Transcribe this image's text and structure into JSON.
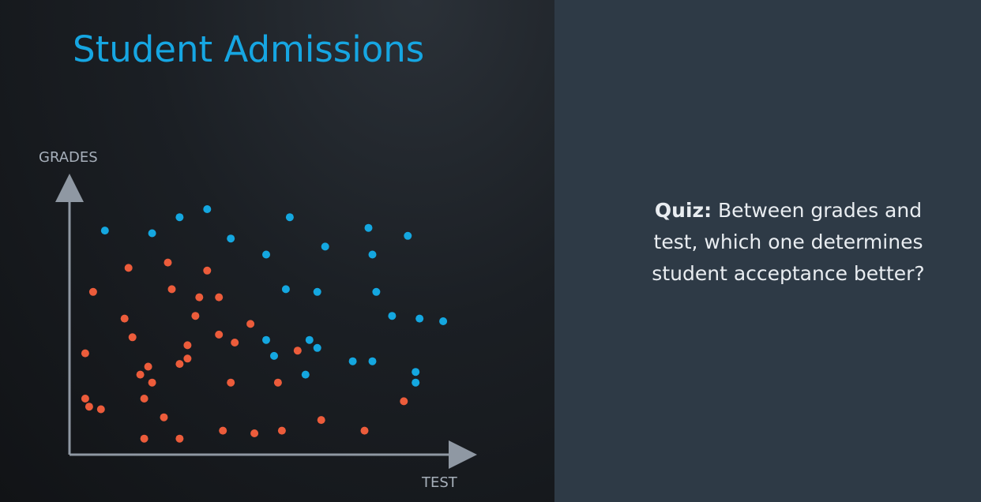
{
  "slide": {
    "title": "Student Admissions",
    "quiz_label": "Quiz:",
    "quiz_text": "Between grades and test, which one determines student acceptance better?"
  },
  "colors": {
    "accepted": "#14a7e0",
    "rejected": "#ec5c3b",
    "axis": "#8f98a3",
    "title": "#16a6e2"
  },
  "chart_data": {
    "type": "scatter",
    "title": "",
    "xlabel": "TEST",
    "ylabel": "GRADES",
    "xlim": [
      0,
      100
    ],
    "ylim": [
      0,
      100
    ],
    "grid": false,
    "series": [
      {
        "color": "#14a7e0",
        "points": [
          [
            9,
            84
          ],
          [
            21,
            83
          ],
          [
            28,
            89
          ],
          [
            35,
            92
          ],
          [
            41,
            81
          ],
          [
            56,
            89
          ],
          [
            50,
            75
          ],
          [
            65,
            78
          ],
          [
            76,
            85
          ],
          [
            77,
            75
          ],
          [
            86,
            82
          ],
          [
            55,
            62
          ],
          [
            63,
            61
          ],
          [
            78,
            61
          ],
          [
            82,
            52
          ],
          [
            89,
            51
          ],
          [
            95,
            50
          ],
          [
            50,
            43
          ],
          [
            52,
            37
          ],
          [
            61,
            43
          ],
          [
            63,
            40
          ],
          [
            72,
            35
          ],
          [
            77,
            35
          ],
          [
            60,
            30
          ],
          [
            88,
            31
          ],
          [
            88,
            27
          ]
        ]
      },
      {
        "color": "#ec5c3b",
        "points": [
          [
            15,
            70
          ],
          [
            25,
            72
          ],
          [
            35,
            69
          ],
          [
            6,
            61
          ],
          [
            26,
            62
          ],
          [
            33,
            59
          ],
          [
            38,
            59
          ],
          [
            46,
            49
          ],
          [
            14,
            51
          ],
          [
            32,
            52
          ],
          [
            42,
            42
          ],
          [
            30,
            41
          ],
          [
            18,
            30
          ],
          [
            16,
            44
          ],
          [
            38,
            45
          ],
          [
            19,
            21
          ],
          [
            28,
            34
          ],
          [
            41,
            27
          ],
          [
            53,
            27
          ],
          [
            58,
            39
          ],
          [
            21,
            27
          ],
          [
            30,
            36
          ],
          [
            24,
            14
          ],
          [
            5,
            18
          ],
          [
            8,
            17
          ],
          [
            19,
            6
          ],
          [
            28,
            6
          ],
          [
            39,
            9
          ],
          [
            47,
            8
          ],
          [
            54,
            9
          ],
          [
            64,
            13
          ],
          [
            75,
            9
          ],
          [
            85,
            20
          ],
          [
            4,
            38
          ],
          [
            4,
            21
          ],
          [
            20,
            33
          ]
        ]
      }
    ]
  }
}
